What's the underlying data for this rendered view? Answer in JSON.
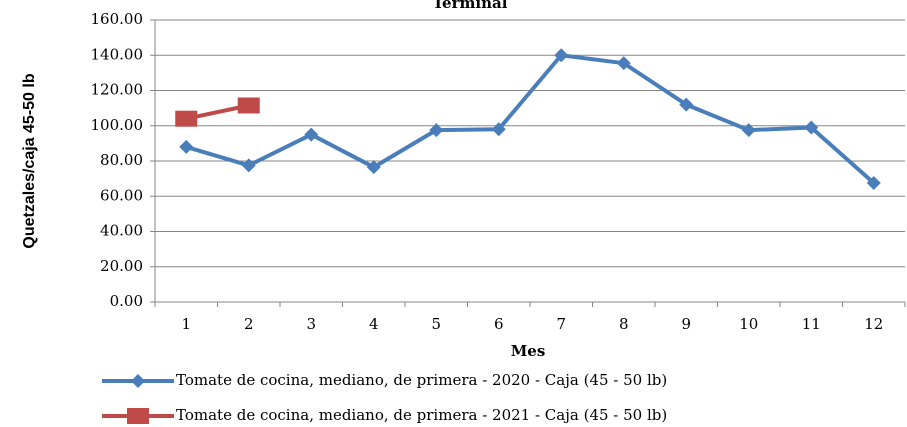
{
  "chart_data": {
    "type": "line",
    "title": "Terminal",
    "x_label": "Mes",
    "y_label": "Quetzales/caja 45-50 lb",
    "categories": [
      "1",
      "2",
      "3",
      "4",
      "5",
      "6",
      "7",
      "8",
      "9",
      "10",
      "11",
      "12"
    ],
    "series": [
      {
        "name": "Tomate de cocina, mediano, de primera - 2020 - Caja (45 - 50 lb)",
        "color": "#4a7ebb",
        "marker": "diamond",
        "values": [
          88,
          77.5,
          95,
          76.5,
          97.5,
          98,
          140,
          135.5,
          112,
          97.5,
          99,
          67.5
        ]
      },
      {
        "name": "Tomate de cocina, mediano, de primera - 2021 - Caja (45 - 50 lb)",
        "color": "#be4b48",
        "marker": "square",
        "values": [
          104,
          111.5,
          null,
          null,
          null,
          null,
          null,
          null,
          null,
          null,
          null,
          null
        ]
      }
    ],
    "ylim": [
      0,
      160
    ],
    "yticks": [
      {
        "value": 0,
        "label": "0.00"
      },
      {
        "value": 20,
        "label": "20.00"
      },
      {
        "value": 40,
        "label": "40.00"
      },
      {
        "value": 60,
        "label": "60.00"
      },
      {
        "value": 80,
        "label": "80.00"
      },
      {
        "value": 100,
        "label": "100.00"
      },
      {
        "value": 120,
        "label": "120.00"
      },
      {
        "value": 140,
        "label": "140.00"
      },
      {
        "value": 160,
        "label": "160.00"
      }
    ],
    "grid": true,
    "legend": "bottom"
  }
}
